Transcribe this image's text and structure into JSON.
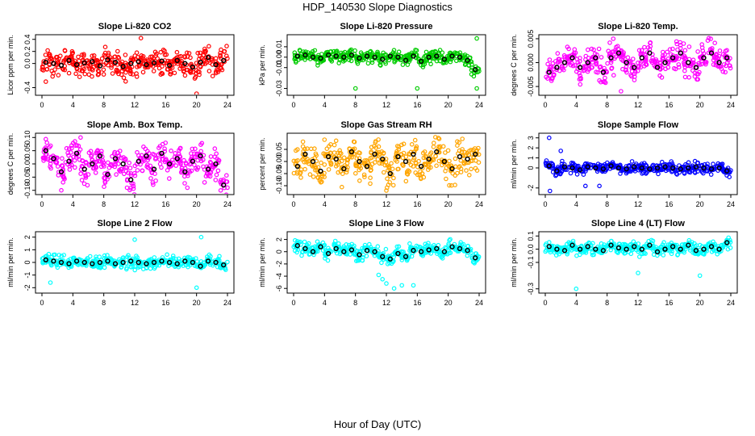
{
  "figure": {
    "title": "HDP_140530  Slope Diagnostics",
    "xlabel": "Hour of Day (UTC)"
  },
  "chart_data": [
    {
      "type": "scatter",
      "title": "Slope Li-820 CO2",
      "ylabel": "Licor ppm per min.",
      "color": "#ff0000",
      "xlim": [
        0,
        24
      ],
      "ylim": [
        -0.5,
        0.45
      ],
      "xticks": [
        0,
        4,
        8,
        12,
        16,
        20,
        24
      ],
      "yticks": [
        -0.4,
        0.0,
        0.2,
        0.4
      ],
      "ytick_labels": [
        "-0.4",
        "0.0",
        "0.2",
        "0.4"
      ],
      "spread": 0.15,
      "outliers": [
        {
          "x": 20,
          "y": -0.5
        },
        {
          "x": 12.8,
          "y": 0.42
        },
        {
          "x": 0.5,
          "y": -0.3
        }
      ],
      "hourly_x": [
        0.5,
        1.5,
        2.5,
        3.5,
        4.5,
        5.5,
        6.5,
        7.5,
        8.5,
        9.5,
        10.5,
        11.5,
        12.5,
        13.5,
        14.5,
        15.5,
        16.5,
        17.5,
        18.5,
        19.5,
        20.5,
        21.5,
        22.5,
        23.5
      ],
      "hourly_values": [
        0.02,
        0.0,
        -0.03,
        0.05,
        -0.02,
        0.01,
        0.03,
        -0.04,
        0.06,
        0.02,
        -0.05,
        0.0,
        0.03,
        -0.02,
        0.01,
        0.04,
        -0.03,
        0.05,
        0.0,
        -0.06,
        0.02,
        0.1,
        -0.02,
        0.05
      ]
    },
    {
      "type": "scatter",
      "title": "Slope Li-820 Pressure",
      "ylabel": "kPa per min.",
      "color": "#00cc00",
      "xlim": [
        0,
        24
      ],
      "ylim": [
        -0.035,
        0.02
      ],
      "xticks": [
        0,
        4,
        8,
        12,
        16,
        20,
        24
      ],
      "yticks": [
        -0.03,
        -0.01,
        0.0,
        0.01
      ],
      "ytick_labels": [
        "-0.03",
        "-0.01",
        "0.00",
        "0.01"
      ],
      "spread": 0.004,
      "outliers": [
        {
          "x": 8,
          "y": -0.03
        },
        {
          "x": 16,
          "y": -0.03
        },
        {
          "x": 23.7,
          "y": -0.03
        },
        {
          "x": 23.7,
          "y": 0.018
        }
      ],
      "hourly_x": [
        0.5,
        1.5,
        2.5,
        3.5,
        4.5,
        5.5,
        6.5,
        7.5,
        8.5,
        9.5,
        10.5,
        11.5,
        12.5,
        13.5,
        14.5,
        15.5,
        16.5,
        17.5,
        18.5,
        19.5,
        20.5,
        21.5,
        22.5,
        23.5
      ],
      "hourly_values": [
        0.001,
        0.002,
        0.0,
        -0.001,
        0.002,
        0.001,
        0.0,
        0.002,
        -0.001,
        0.001,
        0.0,
        -0.002,
        0.001,
        0.0,
        -0.003,
        0.001,
        -0.004,
        0.0,
        0.001,
        -0.002,
        0.001,
        0.0,
        -0.003,
        -0.012
      ]
    },
    {
      "type": "scatter",
      "title": "Slope Li-820 Temp.",
      "ylabel": "degrees C per min.",
      "color": "#ff00ff",
      "xlim": [
        0,
        24
      ],
      "ylim": [
        -0.0065,
        0.0055
      ],
      "xticks": [
        0,
        4,
        8,
        12,
        16,
        20,
        24
      ],
      "yticks": [
        -0.005,
        0.0,
        0.005
      ],
      "ytick_labels": [
        "-0.005",
        "0.000",
        "0.005"
      ],
      "spread": 0.002,
      "outliers": [
        {
          "x": 8.8,
          "y": 0.005
        },
        {
          "x": 9.8,
          "y": -0.006
        }
      ],
      "hourly_x": [
        0.5,
        1.5,
        2.5,
        3.5,
        4.5,
        5.5,
        6.5,
        7.5,
        8.5,
        9.5,
        10.5,
        11.5,
        12.5,
        13.5,
        14.5,
        15.5,
        16.5,
        17.5,
        18.5,
        19.5,
        20.5,
        21.5,
        22.5,
        23.5
      ],
      "hourly_values": [
        -0.002,
        -0.001,
        0.0,
        0.001,
        -0.001,
        0.0,
        0.001,
        -0.002,
        0.001,
        0.002,
        0.0,
        -0.001,
        0.001,
        0.002,
        -0.001,
        0.0,
        0.001,
        0.002,
        0.0,
        -0.001,
        0.001,
        0.002,
        0.0,
        0.001
      ]
    },
    {
      "type": "scatter",
      "title": "Slope Amb. Box Temp.",
      "ylabel": "degrees C per min.",
      "color": "#ff00ff",
      "xlim": [
        0,
        24
      ],
      "ylim": [
        -0.11,
        0.11
      ],
      "xticks": [
        0,
        4,
        8,
        12,
        16,
        20,
        24
      ],
      "yticks": [
        -0.1,
        -0.05,
        0.0,
        0.05,
        0.1
      ],
      "ytick_labels": [
        "-0.10",
        "-0.05",
        "0.00",
        "0.05",
        "0.10"
      ],
      "spread": 0.035,
      "outliers": [
        {
          "x": 2.5,
          "y": -0.1
        },
        {
          "x": 5,
          "y": 0.1
        }
      ],
      "hourly_x": [
        0.5,
        1.5,
        2.5,
        3.5,
        4.5,
        5.5,
        6.5,
        7.5,
        8.5,
        9.5,
        10.5,
        11.5,
        12.5,
        13.5,
        14.5,
        15.5,
        16.5,
        17.5,
        18.5,
        19.5,
        20.5,
        21.5,
        22.5,
        23.5
      ],
      "hourly_values": [
        0.05,
        0.02,
        -0.03,
        0.01,
        0.04,
        -0.02,
        0.0,
        0.03,
        -0.04,
        0.02,
        0.0,
        -0.06,
        0.01,
        0.03,
        -0.02,
        0.04,
        0.0,
        0.02,
        -0.03,
        0.01,
        0.03,
        -0.02,
        0.0,
        -0.08
      ]
    },
    {
      "type": "scatter",
      "title": "Slope Gas Stream RH",
      "ylabel": "percent per min.",
      "color": "#ffa500",
      "xlim": [
        0,
        24
      ],
      "ylim": [
        -0.13,
        0.11
      ],
      "xticks": [
        0,
        4,
        8,
        12,
        16,
        20,
        24
      ],
      "yticks": [
        -0.1,
        -0.05,
        0.0,
        0.05
      ],
      "ytick_labels": [
        "-0.10",
        "-0.05",
        "0.00",
        "0.05"
      ],
      "spread": 0.045,
      "outliers": [
        {
          "x": 4,
          "y": 0.09
        },
        {
          "x": 12,
          "y": -0.12
        }
      ],
      "hourly_x": [
        0.5,
        1.5,
        2.5,
        3.5,
        4.5,
        5.5,
        6.5,
        7.5,
        8.5,
        9.5,
        10.5,
        11.5,
        12.5,
        13.5,
        14.5,
        15.5,
        16.5,
        17.5,
        18.5,
        19.5,
        20.5,
        21.5,
        22.5,
        23.5
      ],
      "hourly_values": [
        -0.02,
        0.03,
        0.0,
        -0.04,
        0.02,
        0.01,
        -0.03,
        0.04,
        0.0,
        -0.02,
        0.03,
        0.01,
        -0.05,
        0.02,
        0.0,
        0.03,
        -0.02,
        0.01,
        0.04,
        0.0,
        -0.03,
        0.02,
        0.01,
        0.03
      ]
    },
    {
      "type": "scatter",
      "title": "Slope Sample Flow",
      "ylabel": "ml/min per min.",
      "color": "#0000ff",
      "xlim": [
        0,
        24
      ],
      "ylim": [
        -2.5,
        3.3
      ],
      "xticks": [
        0,
        4,
        8,
        12,
        16,
        20,
        24
      ],
      "yticks": [
        -2,
        0,
        1,
        2,
        3
      ],
      "ytick_labels": [
        "-2",
        "0",
        "1",
        "2",
        "3"
      ],
      "spread": 0.35,
      "outliers": [
        {
          "x": 0.5,
          "y": 3.0
        },
        {
          "x": 0.6,
          "y": -2.3
        },
        {
          "x": 2,
          "y": 1.7
        },
        {
          "x": 7,
          "y": -1.8
        },
        {
          "x": 5.2,
          "y": -1.8
        }
      ],
      "hourly_x": [
        0.5,
        1.5,
        2.5,
        3.5,
        4.5,
        5.5,
        6.5,
        7.5,
        8.5,
        9.5,
        10.5,
        11.5,
        12.5,
        13.5,
        14.5,
        15.5,
        16.5,
        17.5,
        18.5,
        19.5,
        20.5,
        21.5,
        22.5,
        23.5
      ],
      "hourly_values": [
        0.2,
        -0.3,
        0.1,
        0.0,
        -0.2,
        0.1,
        0.0,
        -0.1,
        0.2,
        0.0,
        -0.1,
        0.1,
        0.0,
        -0.1,
        0.0,
        0.1,
        0.0,
        -0.1,
        0.0,
        0.1,
        0.0,
        -0.1,
        0.0,
        -0.3
      ]
    },
    {
      "type": "scatter",
      "title": "Slope Line 2 Flow",
      "ylabel": "ml/min per min.",
      "color": "#00ffff",
      "xlim": [
        0,
        24
      ],
      "ylim": [
        -2.3,
        2.3
      ],
      "xticks": [
        0,
        4,
        8,
        12,
        16,
        20,
        24
      ],
      "yticks": [
        -2,
        -1,
        0,
        1,
        2
      ],
      "ytick_labels": [
        "-2",
        "-1",
        "0",
        "1",
        "2"
      ],
      "spread": 0.35,
      "outliers": [
        {
          "x": 20,
          "y": -2.0
        },
        {
          "x": 20.6,
          "y": 2.0
        },
        {
          "x": 1.1,
          "y": -1.6
        },
        {
          "x": 12,
          "y": 1.8
        }
      ],
      "hourly_x": [
        0.5,
        1.5,
        2.5,
        3.5,
        4.5,
        5.5,
        6.5,
        7.5,
        8.5,
        9.5,
        10.5,
        11.5,
        12.5,
        13.5,
        14.5,
        15.5,
        16.5,
        17.5,
        18.5,
        19.5,
        20.5,
        21.5,
        22.5,
        23.5
      ],
      "hourly_values": [
        0.2,
        0.1,
        0.0,
        -0.1,
        0.1,
        0.0,
        -0.1,
        0.0,
        0.1,
        -0.1,
        0.0,
        0.1,
        0.0,
        -0.1,
        0.0,
        0.1,
        0.0,
        -0.1,
        0.1,
        0.0,
        -0.3,
        0.1,
        0.0,
        -0.2
      ]
    },
    {
      "type": "scatter",
      "title": "Slope Line 3 Flow",
      "ylabel": "ml/min per min.",
      "color": "#00ffff",
      "xlim": [
        0,
        24
      ],
      "ylim": [
        -6.5,
        3.0
      ],
      "xticks": [
        0,
        4,
        8,
        12,
        16,
        20,
        24
      ],
      "yticks": [
        -6,
        -4,
        -2,
        0,
        2
      ],
      "ytick_labels": [
        "-6",
        "-4",
        "-2",
        "0",
        "2"
      ],
      "spread": 0.7,
      "outliers": [
        {
          "x": 11,
          "y": -3.8
        },
        {
          "x": 12,
          "y": -5.2
        },
        {
          "x": 13,
          "y": -6.0
        },
        {
          "x": 14,
          "y": -5.5
        },
        {
          "x": 15.5,
          "y": -5.5
        },
        {
          "x": 11.5,
          "y": -4.5
        }
      ],
      "hourly_x": [
        0.5,
        1.5,
        2.5,
        3.5,
        4.5,
        5.5,
        6.5,
        7.5,
        8.5,
        9.5,
        10.5,
        11.5,
        12.5,
        13.5,
        14.5,
        15.5,
        16.5,
        17.5,
        18.5,
        19.5,
        20.5,
        21.5,
        22.5,
        23.5
      ],
      "hourly_values": [
        1.0,
        0.5,
        0.0,
        0.8,
        -0.3,
        0.5,
        0.0,
        0.3,
        -0.5,
        0.2,
        0.0,
        -0.8,
        -1.2,
        -0.3,
        -0.8,
        0.2,
        0.0,
        0.3,
        0.5,
        0.0,
        0.8,
        0.5,
        0.2,
        -1.0
      ]
    },
    {
      "type": "scatter",
      "title": "Slope Line 4 (LT) Flow",
      "ylabel": "ml/min per min.",
      "color": "#00ffff",
      "xlim": [
        0,
        24
      ],
      "ylim": [
        -0.32,
        0.12
      ],
      "xticks": [
        0,
        4,
        8,
        12,
        16,
        20,
        24
      ],
      "yticks": [
        -0.3,
        -0.1,
        0.0,
        0.1
      ],
      "ytick_labels": [
        "-0.3",
        "-0.1",
        "0.0",
        "0.1"
      ],
      "spread": 0.03,
      "outliers": [
        {
          "x": 4,
          "y": -0.3
        },
        {
          "x": 12,
          "y": -0.18
        },
        {
          "x": 20,
          "y": -0.2
        }
      ],
      "hourly_x": [
        0.5,
        1.5,
        2.5,
        3.5,
        4.5,
        5.5,
        6.5,
        7.5,
        8.5,
        9.5,
        10.5,
        11.5,
        12.5,
        13.5,
        14.5,
        15.5,
        16.5,
        17.5,
        18.5,
        19.5,
        20.5,
        21.5,
        22.5,
        23.5
      ],
      "hourly_values": [
        0.02,
        0.0,
        -0.01,
        0.03,
        0.0,
        0.02,
        0.0,
        -0.01,
        0.03,
        0.01,
        0.0,
        0.02,
        0.0,
        0.03,
        -0.02,
        0.0,
        0.02,
        0.0,
        0.03,
        -0.01,
        0.0,
        0.02,
        0.0,
        0.05
      ]
    }
  ]
}
